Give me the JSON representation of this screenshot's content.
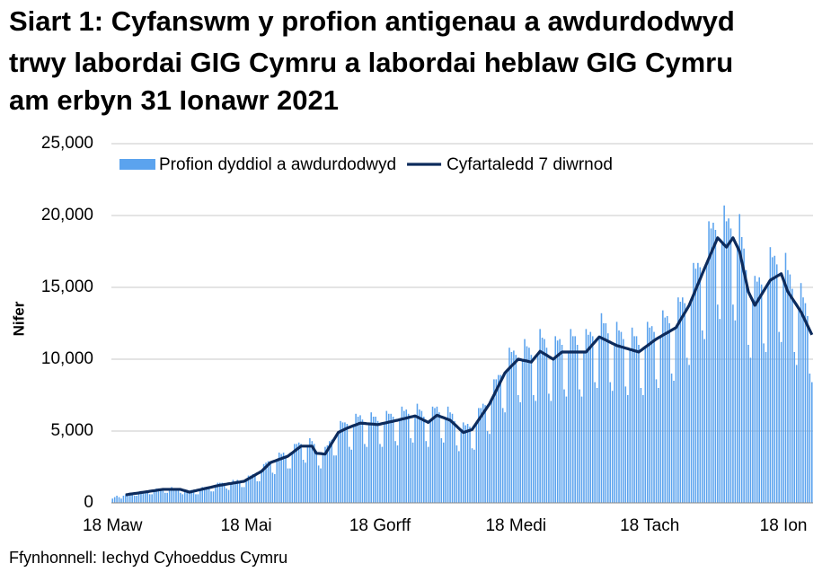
{
  "chart_data": {
    "type": "bar",
    "title": [
      "Siart 1: Cyfanswm y profion antigenau a awdurdodwyd",
      "trwy labordai GIG Cymru a labordai heblaw GIG Cymru",
      "am erbyn 31 Ionawr 2021"
    ],
    "ylabel": "Nifer",
    "source": "Ffynhonnell: Iechyd Cyhoeddus Cymru",
    "ylim": [
      0,
      25000
    ],
    "yticks": [
      0,
      {
        "value": 5000,
        "label": "5,000"
      },
      {
        "value": 10000,
        "label": "10,000"
      },
      {
        "value": 15000,
        "label": "15,000"
      },
      {
        "value": 20000,
        "label": "20,000"
      },
      {
        "value": 25000,
        "label": "25,000"
      }
    ],
    "grid": true,
    "legend": "top",
    "categories": [
      "18 Maw",
      null,
      null,
      null,
      null,
      null,
      null,
      null,
      null,
      null,
      null,
      null,
      null,
      null,
      null,
      null,
      null,
      null,
      null,
      null,
      null,
      null,
      null,
      null,
      null,
      null,
      null,
      null,
      null,
      null,
      null,
      null,
      null,
      null,
      null,
      null,
      null,
      null,
      null,
      null,
      null,
      null,
      null,
      null,
      null,
      null,
      null,
      null,
      null,
      null,
      null,
      null,
      null,
      null,
      null,
      null,
      null,
      null,
      null,
      null,
      null,
      "18 Mai",
      null,
      null,
      null,
      null,
      null,
      null,
      null,
      null,
      null,
      null,
      null,
      null,
      null,
      null,
      null,
      null,
      null,
      null,
      null,
      null,
      null,
      null,
      null,
      null,
      null,
      null,
      null,
      null,
      null,
      null,
      null,
      null,
      null,
      null,
      null,
      null,
      null,
      null,
      null,
      null,
      null,
      null,
      null,
      null,
      null,
      null,
      null,
      null,
      null,
      null,
      null,
      null,
      null,
      null,
      null,
      null,
      null,
      null,
      null,
      null,
      "18 Gorff",
      null,
      null,
      null,
      null,
      null,
      null,
      null,
      null,
      null,
      null,
      null,
      null,
      null,
      null,
      null,
      null,
      null,
      null,
      null,
      null,
      null,
      null,
      null,
      null,
      null,
      null,
      null,
      null,
      null,
      null,
      null,
      null,
      null,
      null,
      null,
      null,
      null,
      null,
      null,
      null,
      null,
      null,
      null,
      null,
      null,
      null,
      null,
      null,
      null,
      null,
      null,
      null,
      null,
      null,
      null,
      null,
      null,
      null,
      null,
      null,
      null,
      "18 Medi",
      null,
      null,
      null,
      null,
      null,
      null,
      null,
      null,
      null,
      null,
      null,
      null,
      null,
      null,
      null,
      null,
      null,
      null,
      null,
      null,
      null,
      null,
      null,
      null,
      null,
      null,
      null,
      null,
      null,
      null,
      null,
      null,
      null,
      null,
      null,
      null,
      null,
      null,
      null,
      null,
      null,
      null,
      null,
      null,
      null,
      null,
      null,
      null,
      null,
      null,
      null,
      null,
      null,
      null,
      null,
      null,
      null,
      null,
      null,
      null,
      "18 Tach",
      null,
      null,
      null,
      null,
      null,
      null,
      null,
      null,
      null,
      null,
      null,
      null,
      null,
      null,
      null,
      null,
      null,
      null,
      null,
      null,
      null,
      null,
      null,
      null,
      null,
      null,
      null,
      null,
      null,
      null,
      null,
      null,
      null,
      null,
      null,
      null,
      null,
      null,
      null,
      null,
      null,
      null,
      null,
      null,
      null,
      null,
      null,
      null,
      null,
      null,
      null,
      null,
      null,
      null,
      null,
      null,
      null,
      null,
      null,
      null,
      "18 Ion",
      null,
      null,
      null,
      null,
      null,
      null,
      null,
      null,
      null,
      null,
      null,
      null,
      null
    ],
    "series": [
      {
        "name": "Profion dyddiol a awdurdodwyd",
        "type": "bar",
        "color": "#5ba3ee",
        "values": [
          300,
          400,
          500,
          400,
          300,
          500,
          600,
          600,
          700,
          700,
          500,
          500,
          700,
          800,
          800,
          800,
          800,
          600,
          600,
          900,
          1000,
          1000,
          1000,
          1000,
          700,
          700,
          900,
          1100,
          1000,
          1000,
          1000,
          700,
          600,
          800,
          900,
          800,
          900,
          900,
          600,
          600,
          900,
          1100,
          1100,
          1100,
          1100,
          800,
          800,
          1200,
          1400,
          1400,
          1400,
          1300,
          1000,
          900,
          1400,
          1600,
          1500,
          1600,
          1500,
          1100,
          1100,
          1600,
          1900,
          1900,
          2000,
          2000,
          1500,
          1500,
          2200,
          2700,
          2800,
          2900,
          2900,
          2100,
          2000,
          3000,
          3500,
          3400,
          3500,
          3300,
          2400,
          2400,
          3500,
          4100,
          4100,
          4200,
          4100,
          3000,
          2800,
          4000,
          4500,
          4300,
          4100,
          3600,
          2600,
          2400,
          3400,
          3900,
          4000,
          4300,
          4400,
          3300,
          3300,
          4900,
          5700,
          5600,
          5600,
          5500,
          3900,
          3700,
          5400,
          6200,
          6000,
          6100,
          5800,
          4100,
          3900,
          5500,
          6300,
          6000,
          6000,
          5700,
          4100,
          3900,
          5600,
          6400,
          6200,
          6200,
          6000,
          4300,
          4000,
          5800,
          6700,
          6400,
          6500,
          6200,
          4500,
          4200,
          6100,
          6900,
          6500,
          6400,
          6000,
          4300,
          3900,
          5700,
          6700,
          6600,
          6700,
          6300,
          4500,
          4200,
          5900,
          6700,
          6300,
          6200,
          5700,
          4000,
          3600,
          5000,
          5600,
          5400,
          5500,
          5300,
          3800,
          3700,
          5600,
          6600,
          6600,
          6900,
          6800,
          5000,
          4800,
          7200,
          8600,
          8600,
          8900,
          8900,
          6600,
          6300,
          9200,
          10800,
          10500,
          10600,
          10300,
          7500,
          7000,
          9900,
          11400,
          10900,
          10800,
          10300,
          7500,
          7100,
          10400,
          12100,
          11500,
          11400,
          10800,
          7600,
          7100,
          10000,
          11600,
          11300,
          11400,
          11000,
          7900,
          7400,
          10500,
          12100,
          11600,
          11600,
          11000,
          7900,
          7400,
          10500,
          12100,
          11700,
          11900,
          11600,
          8400,
          8000,
          11600,
          13200,
          12500,
          12500,
          11800,
          8400,
          7800,
          11000,
          12600,
          12000,
          11900,
          11400,
          8100,
          7500,
          10700,
          12200,
          11600,
          11600,
          11000,
          8000,
          7500,
          10800,
          12600,
          12200,
          12300,
          11900,
          8600,
          8000,
          11600,
          13400,
          12900,
          13000,
          12500,
          9000,
          8500,
          12200,
          14300,
          14000,
          14300,
          13900,
          10100,
          9600,
          14100,
          16700,
          16300,
          16700,
          16400,
          12000,
          11400,
          16700,
          19600,
          19100,
          19500,
          19000,
          13800,
          12800,
          18100,
          20700,
          19600,
          19800,
          19100,
          13800,
          12700,
          17800,
          20100,
          18500,
          17700,
          16200,
          11000,
          10100,
          14100,
          15800,
          15400,
          15700,
          15200,
          11100,
          10500,
          15300,
          17800,
          17100,
          17200,
          16600,
          11900,
          11200,
          15500,
          17400,
          16200,
          15900,
          14900,
          10500,
          9600,
          13500,
          15300,
          14300,
          13900,
          13000,
          9000,
          8400
        ]
      },
      {
        "name": "Cyfartaledd 7 diwrnod",
        "type": "line",
        "color": "#0d2b5c",
        "values": [
          null,
          null,
          null,
          null,
          null,
          null,
          560,
          580,
          610,
          630,
          650,
          670,
          690,
          720,
          740,
          760,
          780,
          810,
          830,
          850,
          870,
          900,
          920,
          940,
          940,
          940,
          940,
          940,
          940,
          940,
          940,
          940,
          890,
          850,
          800,
          750,
          780,
          820,
          850,
          890,
          920,
          960,
          990,
          1030,
          1060,
          1090,
          1130,
          1170,
          1200,
          1230,
          1250,
          1280,
          1300,
          1330,
          1350,
          1380,
          1400,
          1430,
          1450,
          1480,
          1500,
          1590,
          1680,
          1760,
          1850,
          1940,
          2030,
          2110,
          2200,
          2350,
          2500,
          2650,
          2800,
          2860,
          2910,
          2970,
          3030,
          3080,
          3140,
          3190,
          3250,
          3370,
          3480,
          3600,
          3720,
          3830,
          3950,
          3950,
          3950,
          3950,
          3950,
          3950,
          3700,
          3450,
          3440,
          3430,
          3410,
          3400,
          3650,
          3900,
          4150,
          4400,
          4650,
          4900,
          4980,
          5050,
          5130,
          5200,
          5260,
          5320,
          5380,
          5430,
          5490,
          5550,
          5540,
          5530,
          5510,
          5500,
          5490,
          5480,
          5460,
          5450,
          5480,
          5520,
          5550,
          5580,
          5620,
          5650,
          5680,
          5720,
          5750,
          5790,
          5830,
          5860,
          5900,
          5940,
          5980,
          6010,
          6050,
          5980,
          5900,
          5830,
          5750,
          5680,
          5600,
          5730,
          5850,
          5980,
          6100,
          6040,
          5980,
          5930,
          5870,
          5810,
          5750,
          5610,
          5470,
          5330,
          5180,
          5040,
          4900,
          4950,
          5000,
          5050,
          5100,
          5330,
          5550,
          5780,
          6000,
          6230,
          6450,
          6680,
          6900,
          7210,
          7510,
          7820,
          8130,
          8440,
          8740,
          9050,
          9210,
          9370,
          9530,
          9680,
          9840,
          10000,
          9970,
          9930,
          9900,
          9870,
          9830,
          9800,
          9990,
          10180,
          10360,
          10550,
          10460,
          10370,
          10280,
          10180,
          10090,
          10000,
          10130,
          10250,
          10380,
          10500,
          10500,
          10500,
          10500,
          10500,
          10500,
          10500,
          10500,
          10500,
          10500,
          10500,
          10500,
          10680,
          10850,
          11030,
          11200,
          11380,
          11550,
          11480,
          11400,
          11330,
          11250,
          11180,
          11100,
          11030,
          10950,
          10910,
          10860,
          10820,
          10770,
          10730,
          10680,
          10640,
          10590,
          10550,
          10500,
          10610,
          10730,
          10840,
          10950,
          11060,
          11180,
          11290,
          11400,
          11490,
          11580,
          11670,
          11760,
          11840,
          11930,
          12020,
          12110,
          12200,
          12460,
          12720,
          12980,
          13230,
          13490,
          13750,
          14120,
          14480,
          14850,
          15220,
          15580,
          15950,
          16310,
          16660,
          17020,
          17380,
          17740,
          18090,
          18450,
          18290,
          18130,
          17960,
          17800,
          18020,
          18230,
          18450,
          18130,
          17820,
          17500,
          16800,
          16100,
          15400,
          14700,
          14380,
          14070,
          13750,
          14000,
          14250,
          14500,
          14750,
          15000,
          15250,
          15500,
          15590,
          15680,
          15770,
          15860,
          15950,
          15530,
          15120,
          14700,
          14470,
          14230,
          14000,
          13770,
          13530,
          13300,
          12980,
          12660,
          12340,
          12020,
          11700
        ]
      }
    ]
  }
}
